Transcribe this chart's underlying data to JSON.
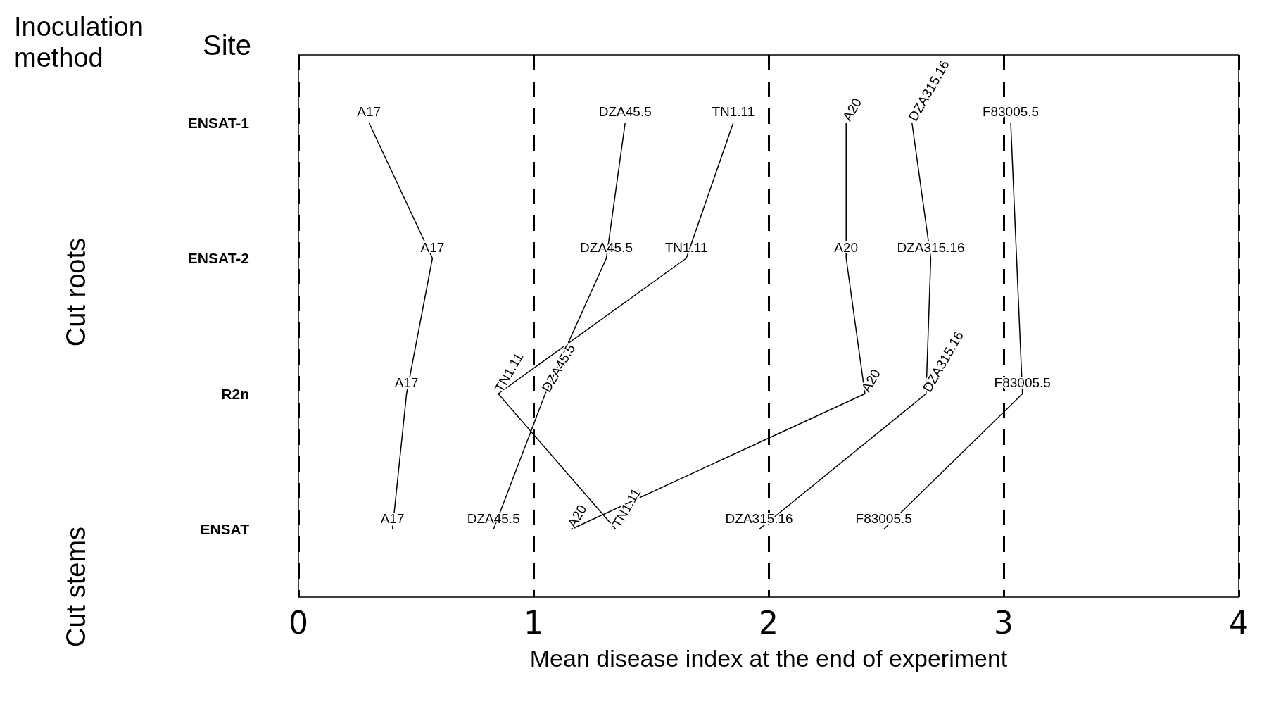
{
  "chart_data": {
    "type": "line",
    "orientation": "horizontal",
    "xlabel": "Mean disease index at the end of experiment",
    "ylabel": "Site",
    "annotations": [
      "Inoculation method",
      "Cut roots",
      "Cut stems"
    ],
    "categories": [
      "ENSAT-1",
      "ENSAT-2",
      "R2n",
      "ENSAT"
    ],
    "series": [
      {
        "name": "A17",
        "color": "#000000",
        "values": [
          0.3,
          0.57,
          0.46,
          0.4
        ]
      },
      {
        "name": "DZA45.5",
        "color": "#000000",
        "values": [
          1.39,
          1.31,
          1.05,
          0.83
        ]
      },
      {
        "name": "TN1.11",
        "color": "#000000",
        "values": [
          1.85,
          1.65,
          0.85,
          1.35
        ]
      },
      {
        "name": "A20",
        "color": "#000000",
        "values": [
          2.33,
          2.33,
          2.41,
          1.16
        ]
      },
      {
        "name": "DZA315.16",
        "color": "#000000",
        "values": [
          2.61,
          2.69,
          2.67,
          1.96
        ]
      },
      {
        "name": "F83005.5",
        "color": "#000000",
        "values": [
          3.03,
          null,
          3.08,
          2.49
        ]
      }
    ],
    "xlim": [
      0,
      4
    ],
    "xticks": [
      0,
      1,
      2,
      3,
      4
    ],
    "grid": "x",
    "line_style": "solid",
    "marker": "none",
    "legend": false
  }
}
